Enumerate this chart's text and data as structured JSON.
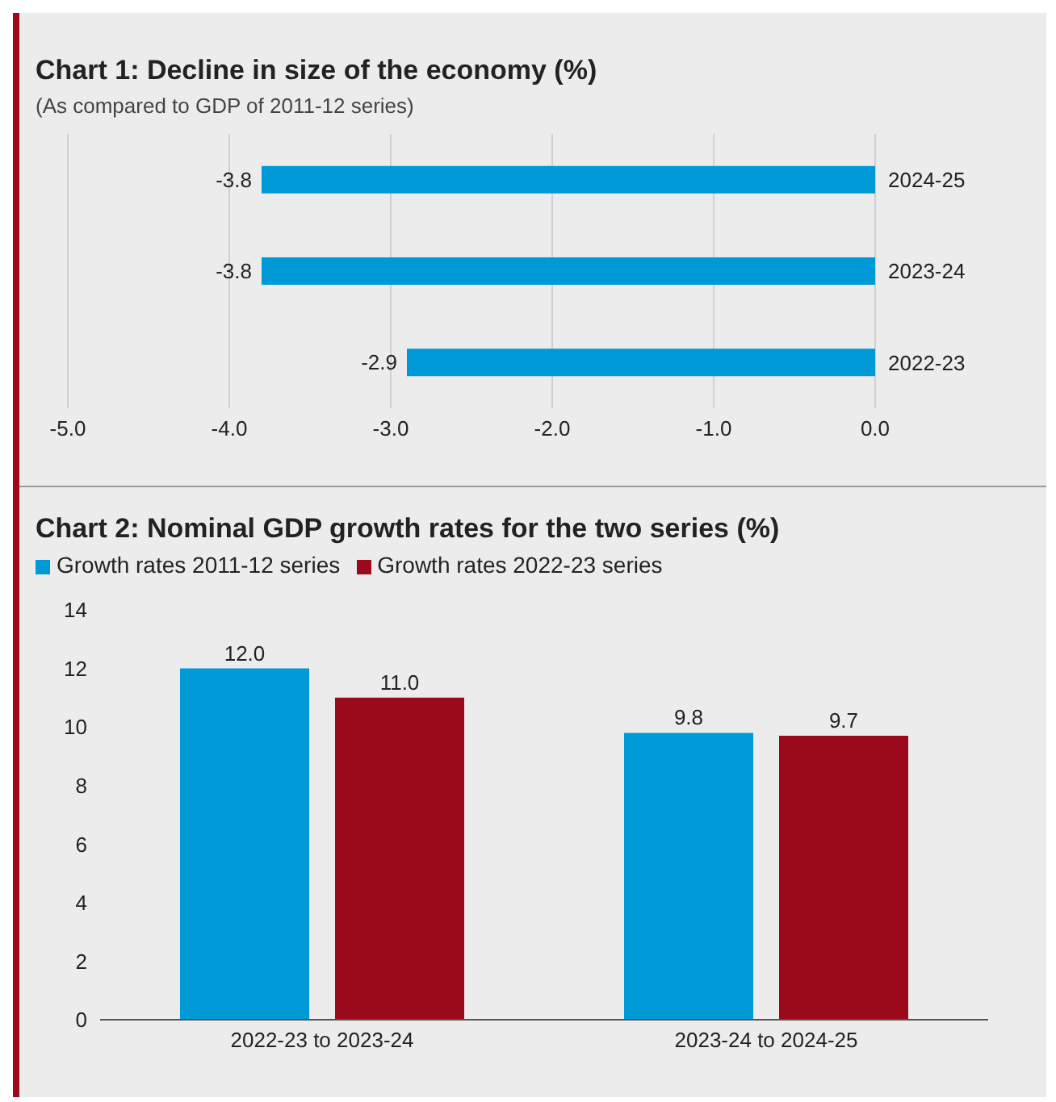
{
  "chart_data": [
    {
      "type": "bar",
      "title": "Chart 1: Decline in size of the economy (%)",
      "subtitle": "(As compared to GDP of 2011-12 series)",
      "orientation": "horizontal",
      "categories": [
        "2024-25",
        "2023-24",
        "2022-23"
      ],
      "values": [
        -3.8,
        -3.8,
        -2.9
      ],
      "color": "#0099d8",
      "xlim": [
        -5,
        0
      ],
      "xticks": [
        {
          "value": -5,
          "label": "-5.0"
        },
        {
          "value": -4,
          "label": "-4.0"
        },
        {
          "value": -3,
          "label": "-3.0"
        },
        {
          "value": -2,
          "label": "-2.0"
        },
        {
          "value": -1,
          "label": "-1.0"
        },
        {
          "value": 0,
          "label": "0.0"
        }
      ],
      "grid": "x",
      "data_labels": true
    },
    {
      "type": "bar",
      "title": "Chart 2: Nominal GDP growth rates for the two series (%)",
      "categories": [
        "2022-23 to 2023-24",
        "2023-24 to 2024-25"
      ],
      "series": [
        {
          "name": "Growth rates 2011-12 series",
          "color": "#0099d8",
          "values": [
            12.0,
            9.8
          ],
          "value_labels": [
            "12.0",
            "9.8"
          ]
        },
        {
          "name": "Growth rates 2022-23 series",
          "color": "#9b0a1a",
          "values": [
            11.0,
            9.7
          ],
          "value_labels": [
            "11.0",
            "9.7"
          ]
        }
      ],
      "ylim": [
        0,
        14
      ],
      "yticks": [
        0,
        2,
        4,
        6,
        8,
        10,
        12,
        14
      ],
      "legend": "top left"
    }
  ]
}
